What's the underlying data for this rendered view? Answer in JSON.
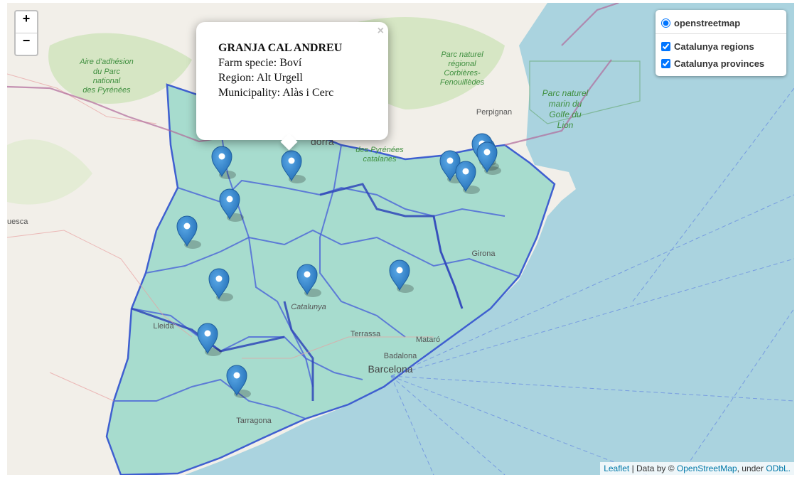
{
  "zoom": {
    "in_label": "+",
    "out_label": "−"
  },
  "layers": {
    "base": "openstreetmap",
    "overlays": [
      "Catalunya regions",
      "Catalunya provinces"
    ]
  },
  "popup": {
    "title": "GRANJA CAL ANDREU",
    "line1": "Farm specie: Boví",
    "line2": "Region: Alt Urgell",
    "line3": "Municipality: Alàs i Cerc",
    "close": "×"
  },
  "map_labels": {
    "pyr_fr": [
      "Aire d'adhésion",
      "du Parc",
      "national",
      "des Pyrénées"
    ],
    "corbieres": [
      "Parc naturel",
      "régional",
      "Corbières-",
      "Fenouillèdes"
    ],
    "golfe": [
      "Parc naturel",
      "marin du",
      "Golfe du",
      "Lion"
    ],
    "pyr_cat": [
      "des Pyrénées",
      "catalanes"
    ],
    "perpignan": "Perpignan",
    "andorra": "dorra",
    "lleida": "Lleida",
    "huesca": "uesca",
    "girona": "Girona",
    "catalunya": "Catalunya",
    "terrassa": "Terrassa",
    "mataro": "Mataró",
    "badalona": "Badalona",
    "barcelona": "Barcelona",
    "tarragona": "Tarragona"
  },
  "attribution": {
    "leaflet": "Leaflet",
    "sep": " | Data by © ",
    "osm": "OpenStreetMap",
    "mid": ", under ",
    "odbl": "ODbL."
  },
  "colors": {
    "sea": "#aad3df",
    "land": "#f2efe9",
    "region_fill": "#8ed5c4",
    "boundary": "#3f5fd0",
    "marker": "#2f85cd"
  },
  "markers": [
    "marker",
    "marker",
    "marker",
    "marker",
    "marker",
    "marker",
    "marker",
    "marker",
    "marker",
    "marker",
    "marker",
    "marker",
    "marker",
    "marker"
  ]
}
